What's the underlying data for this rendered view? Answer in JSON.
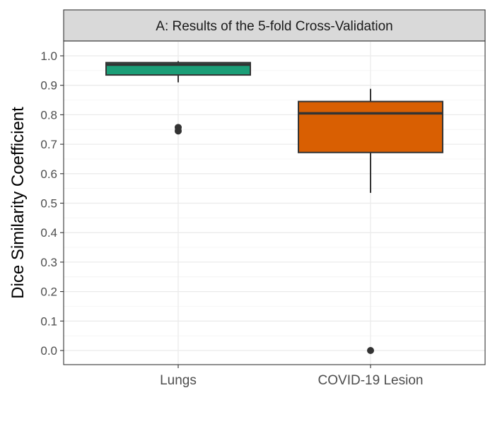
{
  "chart_data": {
    "type": "box",
    "title": "A: Results of the 5-fold Cross-Validation",
    "xlabel": "",
    "ylabel": "Dice Similarity Coefficient",
    "ylim": [
      -0.05,
      1.05
    ],
    "yticks": [
      0.0,
      0.1,
      0.2,
      0.3,
      0.4,
      0.5,
      0.6,
      0.7,
      0.8,
      0.9,
      1.0
    ],
    "ytick_labels": [
      "0.0",
      "0.1",
      "0.2",
      "0.3",
      "0.4",
      "0.5",
      "0.6",
      "0.7",
      "0.8",
      "0.9",
      "1.0"
    ],
    "categories": [
      "Lungs",
      "COVID-19 Lesion"
    ],
    "boxes": [
      {
        "category": "Lungs",
        "color": "#1b9e77",
        "whisker_low": 0.91,
        "q1": 0.935,
        "median": 0.97,
        "q3": 0.977,
        "whisker_high": 0.982,
        "outliers": [
          0.745,
          0.757
        ]
      },
      {
        "category": "COVID-19 Lesion",
        "color": "#d95f02",
        "whisker_low": 0.535,
        "q1": 0.672,
        "median": 0.805,
        "q3": 0.845,
        "whisker_high": 0.888,
        "outliers": [
          0.0
        ]
      }
    ],
    "grid": true,
    "panel_strip_color": "#d9d9d9"
  }
}
